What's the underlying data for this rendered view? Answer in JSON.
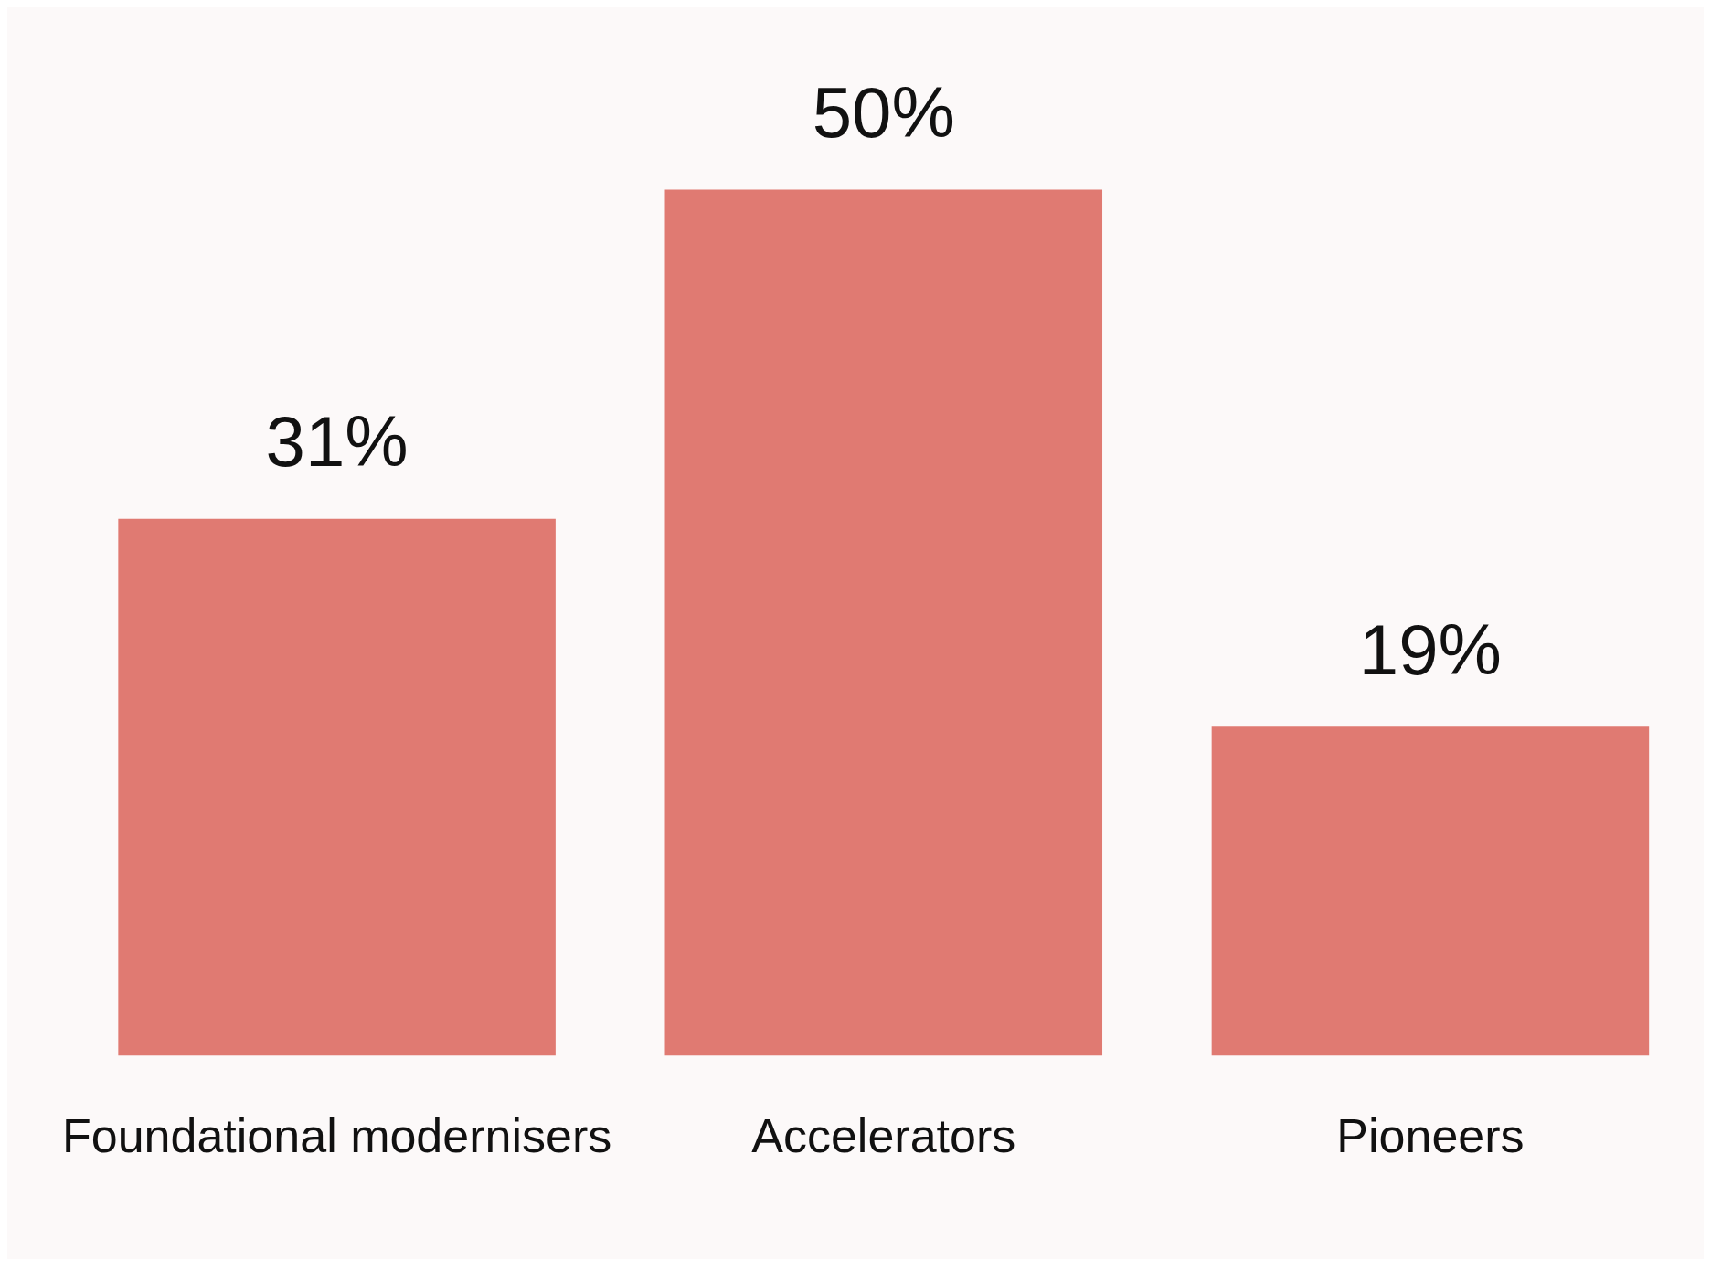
{
  "chart_data": {
    "type": "bar",
    "categories": [
      "Foundational modernisers",
      "Accelerators",
      "Pioneers"
    ],
    "values": [
      31,
      50,
      19
    ],
    "value_labels": [
      "31%",
      "50%",
      "19%"
    ],
    "color": "#e07a72",
    "grid": false,
    "legend": false
  }
}
